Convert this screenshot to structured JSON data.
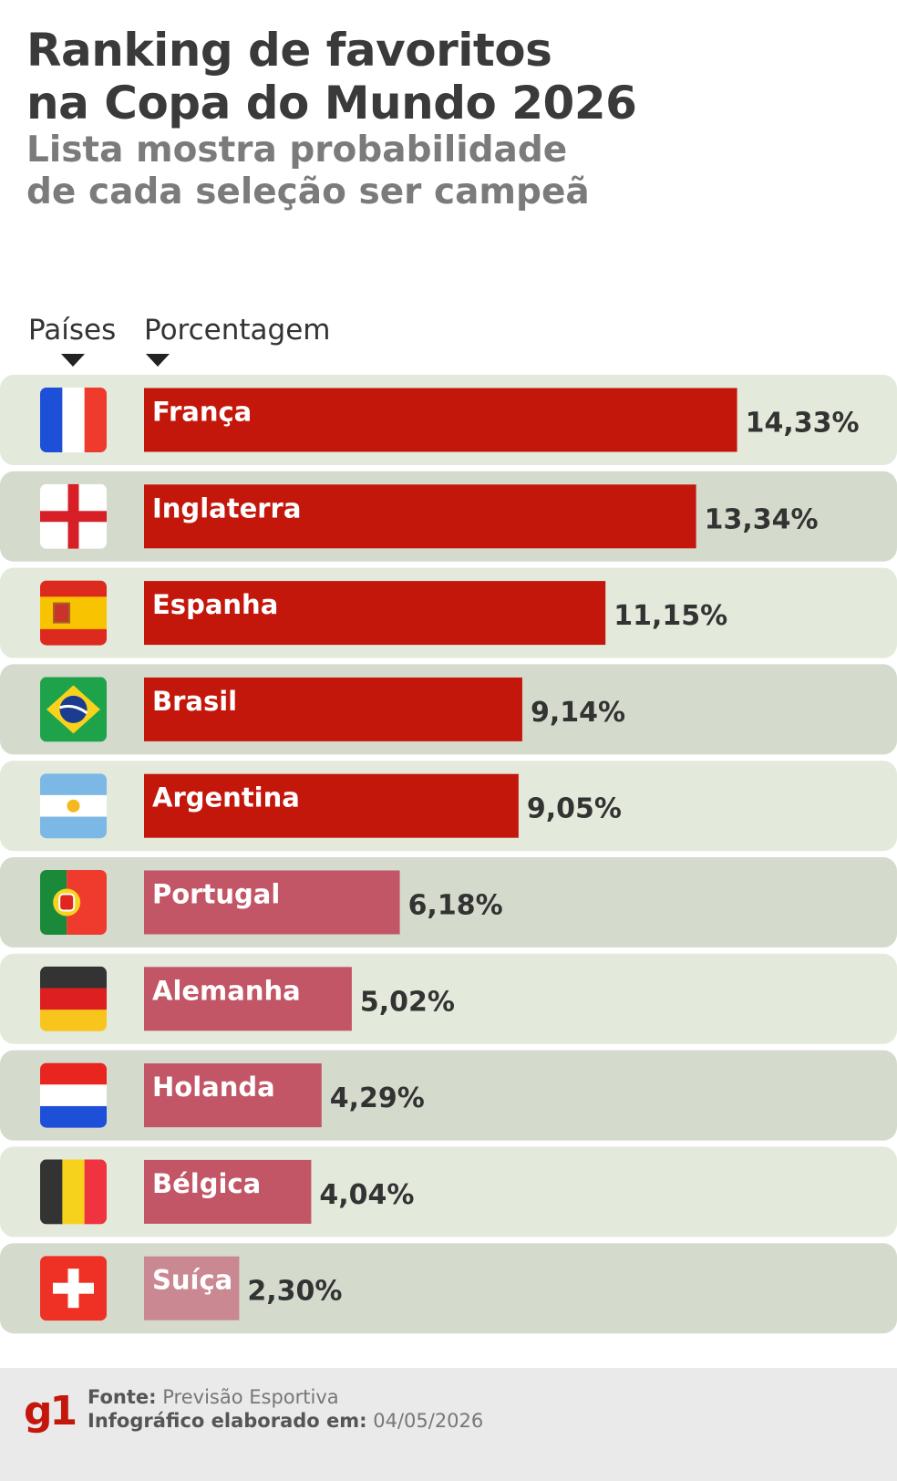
{
  "header": {
    "title_line1": "Ranking de favoritos",
    "title_line2": "na Copa do Mundo 2026",
    "subtitle_line1": "Lista mostra probabilidade",
    "subtitle_line2": "de cada seleção ser campeã"
  },
  "columns": {
    "countries_label": "Países",
    "percent_label": "Porcentagem"
  },
  "chart_data": {
    "type": "bar",
    "orientation": "horizontal",
    "categories": [
      "França",
      "Inglaterra",
      "Espanha",
      "Brasil",
      "Argentina",
      "Portugal",
      "Alemanha",
      "Holanda",
      "Bélgica",
      "Suíça"
    ],
    "values": [
      14.33,
      13.34,
      11.15,
      9.14,
      9.05,
      6.18,
      5.02,
      4.29,
      4.04,
      2.3
    ],
    "value_labels": [
      "14,33%",
      "13,34%",
      "11,15%",
      "9,14%",
      "9,05%",
      "6,18%",
      "5,02%",
      "4,29%",
      "4,04%",
      "2,30%"
    ],
    "unit": "%",
    "flags": [
      "france-flag-icon",
      "england-flag-icon",
      "spain-flag-icon",
      "brazil-flag-icon",
      "argentina-flag-icon",
      "portugal-flag-icon",
      "germany-flag-icon",
      "netherlands-flag-icon",
      "belgium-flag-icon",
      "switzerland-flag-icon"
    ],
    "bar_colors": [
      "#c4170c",
      "#c4170c",
      "#c4170c",
      "#c4170c",
      "#c4170c",
      "#c25566",
      "#c25566",
      "#c25566",
      "#c25566",
      "#c98892"
    ],
    "row_colors": [
      "#e3eadb",
      "#d4dbcd"
    ],
    "value_color": "#333333"
  },
  "footer": {
    "logo": "g1",
    "source_label": "Fonte:",
    "source_value": "Previsão Esportiva",
    "date_label": "Infográfico elaborado em:",
    "date_value": "04/05/2026"
  }
}
